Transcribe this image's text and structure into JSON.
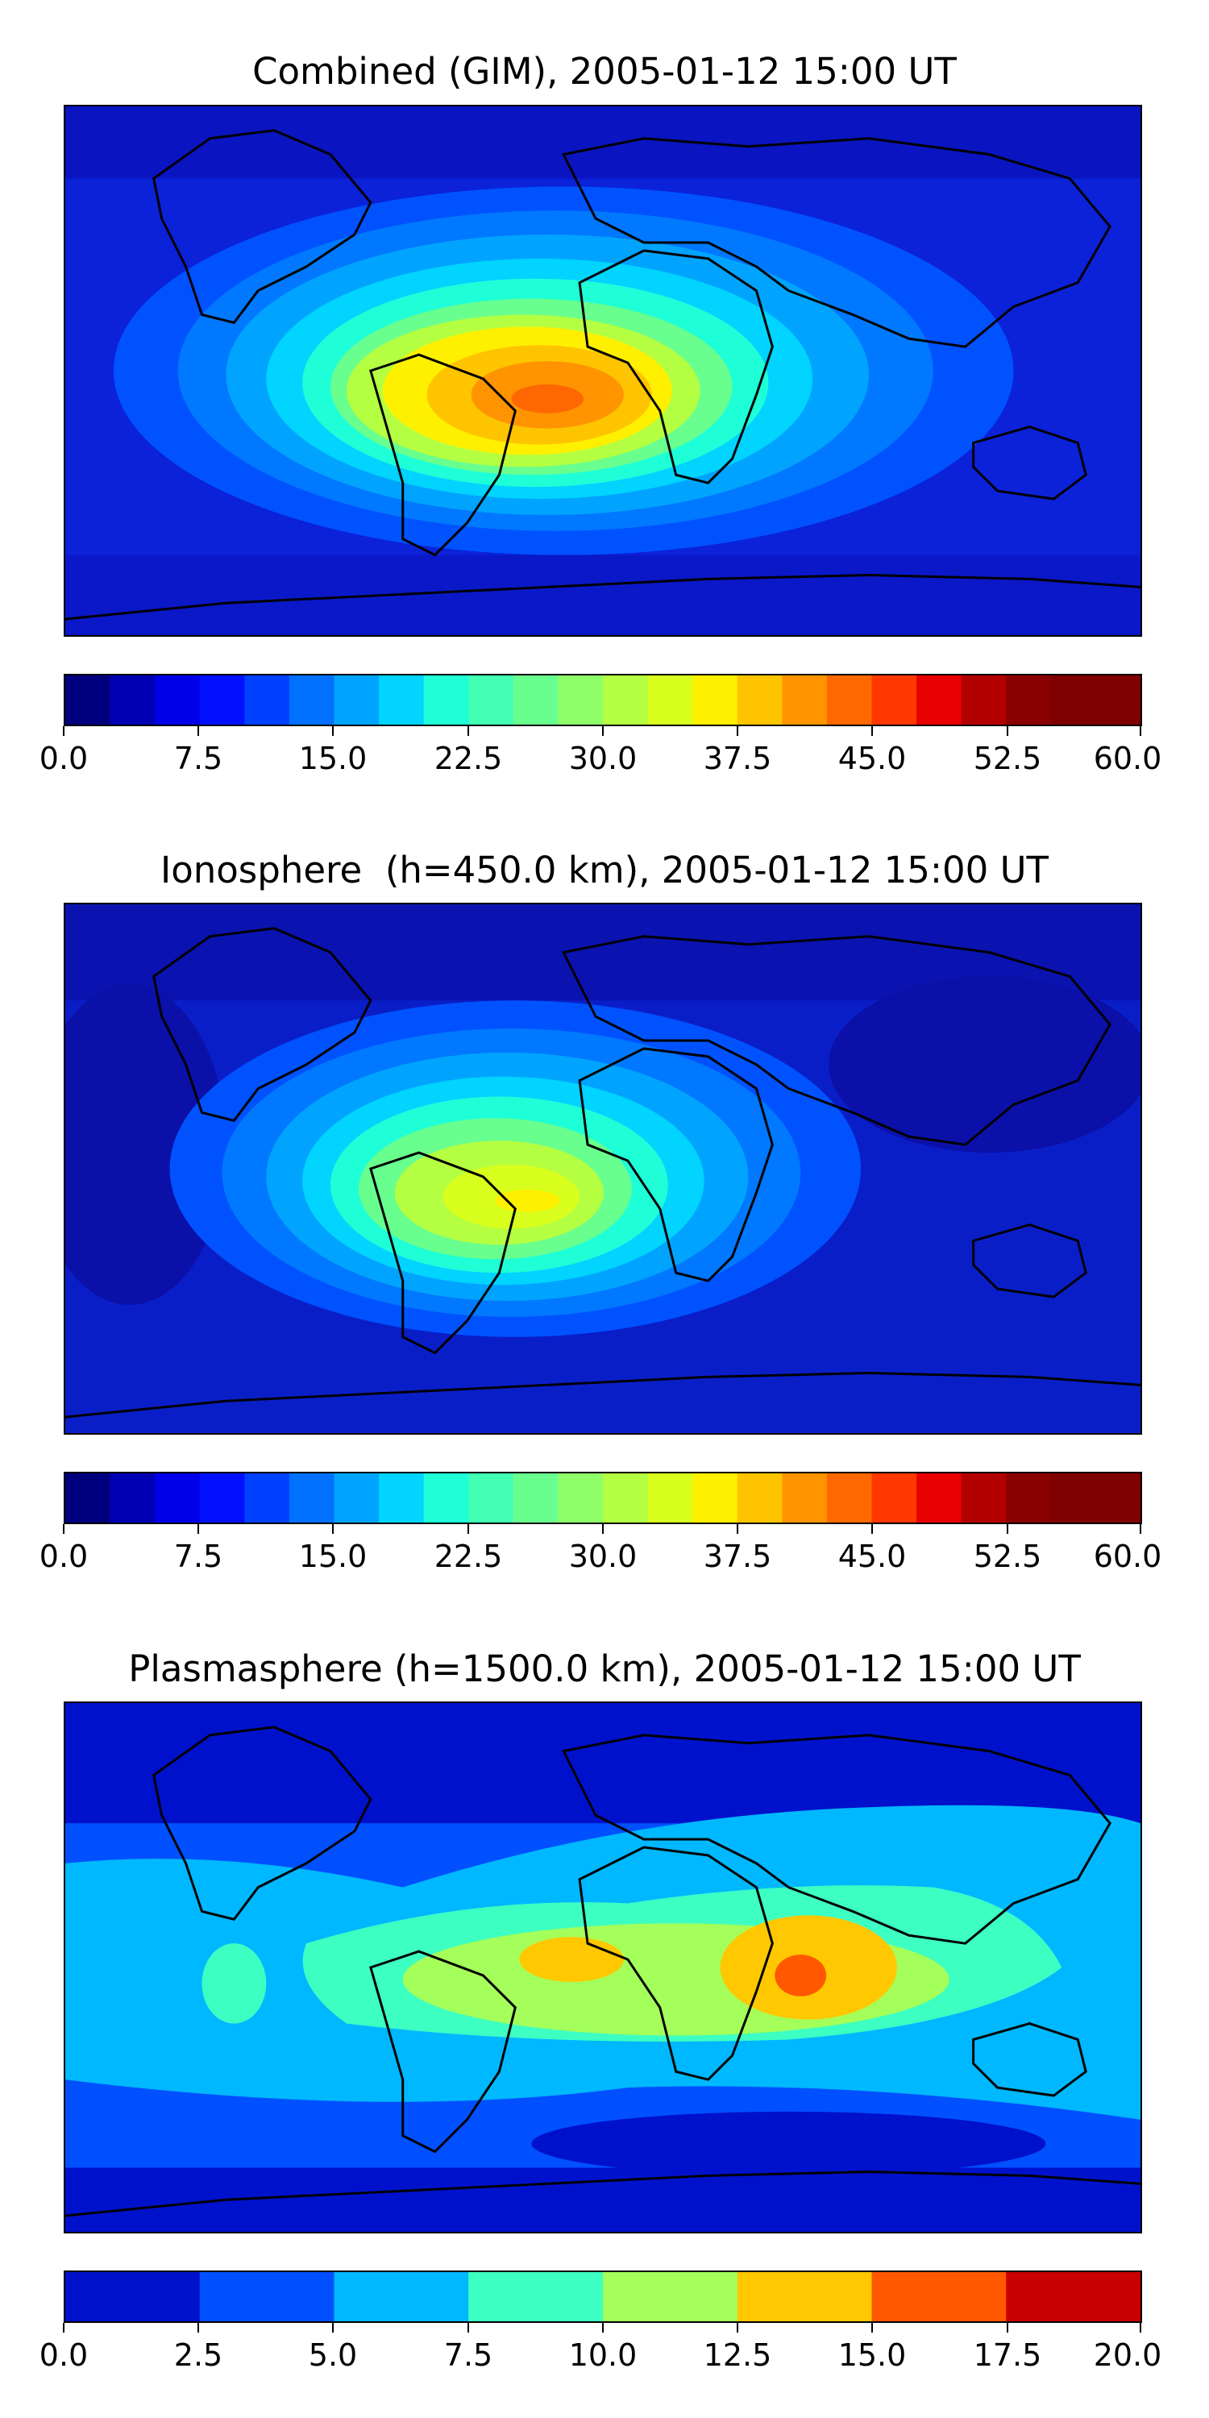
{
  "panels": [
    {
      "title": "Combined (GIM), 2005-01-12 15:00 UT",
      "colorbar": {
        "ticks": [
          "0.0",
          "7.5",
          "15.0",
          "22.5",
          "30.0",
          "37.5",
          "45.0",
          "52.5",
          "60.0"
        ],
        "vmin": 0,
        "vmax": 60,
        "levels": 24
      }
    },
    {
      "title": "Ionosphere  (h=450.0 km), 2005-01-12 15:00 UT",
      "colorbar": {
        "ticks": [
          "0.0",
          "7.5",
          "15.0",
          "22.5",
          "30.0",
          "37.5",
          "45.0",
          "52.5",
          "60.0"
        ],
        "vmin": 0,
        "vmax": 60,
        "levels": 24
      }
    },
    {
      "title": "Plasmasphere (h=1500.0 km), 2005-01-12 15:00 UT",
      "colorbar": {
        "ticks": [
          "0.0",
          "2.5",
          "5.0",
          "7.5",
          "10.0",
          "12.5",
          "15.0",
          "17.5",
          "20.0"
        ],
        "vmin": 0,
        "vmax": 20,
        "levels": 8
      }
    }
  ],
  "colors": {
    "jet24": [
      "#00007f",
      "#0000b2",
      "#0000e8",
      "#0010ff",
      "#0040ff",
      "#0070ff",
      "#00a4ff",
      "#00d4ff",
      "#1effd8",
      "#42ffb4",
      "#68ff8e",
      "#8eff68",
      "#b4ff42",
      "#d8ff1e",
      "#fff000",
      "#ffc400",
      "#ff9400",
      "#ff6800",
      "#ff3800",
      "#e80000",
      "#b20000",
      "#8b0000",
      "#7f0000",
      "#7f0000"
    ],
    "jet8": [
      "#0011cc",
      "#0050ff",
      "#00b8ff",
      "#3dffc2",
      "#a4ff5a",
      "#ffc800",
      "#ff5800",
      "#c80000"
    ]
  }
}
